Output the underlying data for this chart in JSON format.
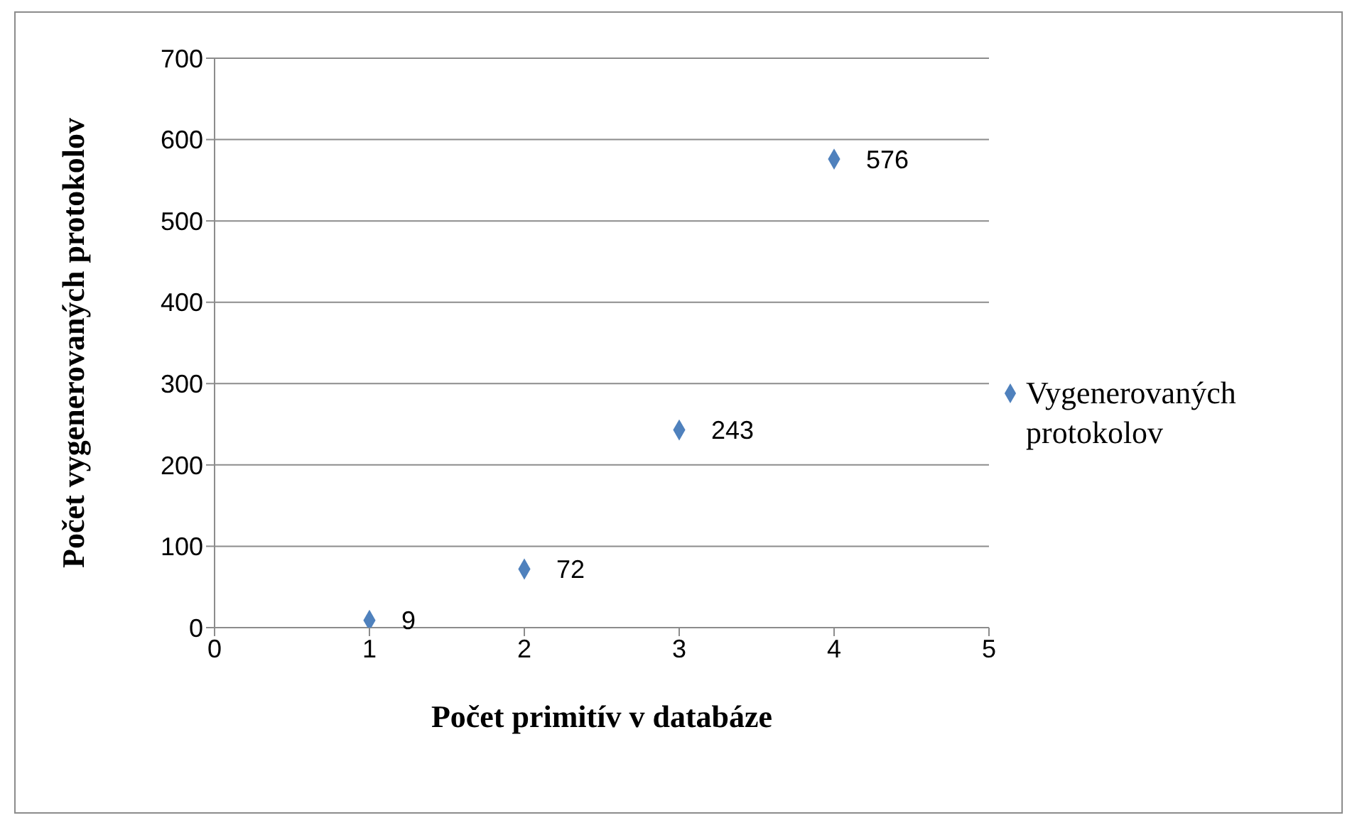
{
  "chart_data": {
    "type": "scatter",
    "xlabel": "Počet primitív v databáze",
    "ylabel": "Počet vygenerovaných protokolov",
    "x": [
      1,
      2,
      3,
      4
    ],
    "series": [
      {
        "name": "Vygenerovaných protokolov",
        "color": "#4f81bd",
        "values": [
          9,
          72,
          243,
          576
        ]
      }
    ],
    "xlim": [
      0,
      5
    ],
    "xticks": [
      0,
      1,
      2,
      3,
      4,
      5
    ],
    "ylim": [
      0,
      700
    ],
    "yticks": [
      0,
      100,
      200,
      300,
      400,
      500,
      600,
      700
    ],
    "grid": "y",
    "legend": "right",
    "marker": "diamond",
    "data_labels": true
  }
}
